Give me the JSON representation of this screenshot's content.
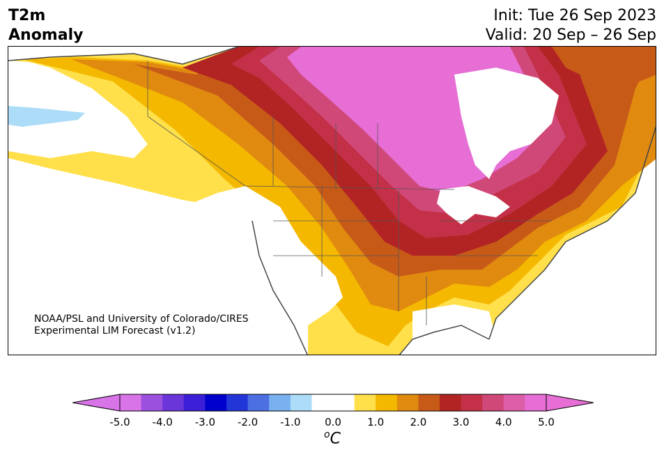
{
  "title": {
    "line1": "T2m",
    "line2": "Anomaly"
  },
  "init_text": "Init: Tue 26 Sep 2023",
  "valid_text": "Valid: 20 Sep – 26 Sep",
  "credit": {
    "line1": "NOAA/PSL and University of Colorado/CIRES",
    "line2": "Experimental LIM Forecast (v1.2)"
  },
  "colorbar": {
    "ticks": [
      "-5.0",
      "-4.0",
      "-3.0",
      "-2.0",
      "-1.0",
      "0.0",
      "1.0",
      "2.0",
      "3.0",
      "4.0",
      "5.0"
    ],
    "unit_base": "C",
    "unit_sup": "o",
    "colors": [
      "#d873e8",
      "#9b51de",
      "#6a35d9",
      "#3a1fd6",
      "#0000cc",
      "#2236d8",
      "#4c6fe2",
      "#78b0f0",
      "#acdcf7",
      "#ffffff",
      "#ffffff",
      "#ffe04a",
      "#f4b800",
      "#e08a10",
      "#c85a18",
      "#b22424",
      "#c33048",
      "#d04878",
      "#dc5ea8",
      "#e66ed4"
    ],
    "under_color": "#d873e8",
    "over_color": "#e66ed4"
  },
  "map": {
    "region": "North America",
    "ocean_color": "#ffffff",
    "coast_color": "#444444"
  }
}
